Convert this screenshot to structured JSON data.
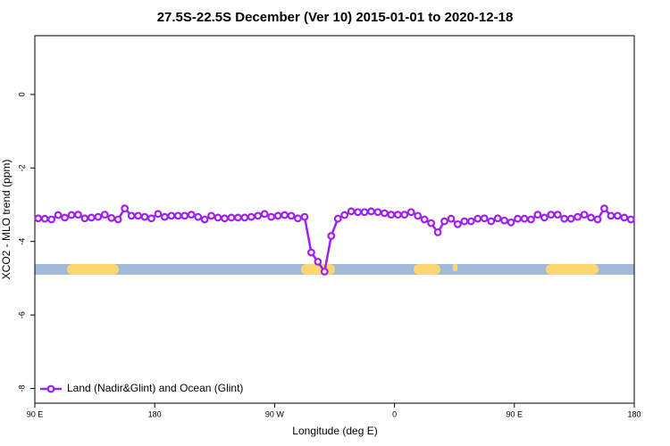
{
  "chart_data": {
    "type": "line",
    "title": "27.5S-22.5S December (Ver 10)   2015-01-01 to 2020-12-18",
    "x_label": "Longitude (deg E)",
    "y_label": "XCO2 - MLO trend (ppm)",
    "xlim": [
      90,
      540
    ],
    "xticks": [
      {
        "value": 90,
        "label": "90 E"
      },
      180,
      {
        "value": 270,
        "label": "90 W"
      },
      {
        "value": 360,
        "label": "0"
      },
      {
        "value": 450,
        "label": "90 E"
      },
      {
        "value": 540,
        "label": "180"
      }
    ],
    "ylim": [
      -8.4,
      1.6
    ],
    "yticks": [
      0,
      -2,
      -4,
      -6,
      -8
    ],
    "legend": "bottom-left",
    "x": [
      92.5,
      97.5,
      102.5,
      107.5,
      112.5,
      117.5,
      122.5,
      127.5,
      132.5,
      137.5,
      142.5,
      147.5,
      152.5,
      157.5,
      162.5,
      167.5,
      172.5,
      177.5,
      182.5,
      187.5,
      192.5,
      197.5,
      202.5,
      207.5,
      212.5,
      217.5,
      222.5,
      227.5,
      232.5,
      237.5,
      242.5,
      247.5,
      252.5,
      257.5,
      262.5,
      267.5,
      272.5,
      277.5,
      282.5,
      287.5,
      292.5,
      297.5,
      302.5,
      307.5,
      312.5,
      317.5,
      322.5,
      327.5,
      332.5,
      337.5,
      342.5,
      347.5,
      352.5,
      357.5,
      362.5,
      367.5,
      372.5,
      377.5,
      382.5,
      387.5,
      392.5,
      397.5,
      402.5,
      407.5,
      412.5,
      417.5,
      422.5,
      427.5,
      432.5,
      437.5,
      442.5,
      447.5,
      452.5,
      457.5,
      462.5,
      467.5,
      472.5,
      477.5,
      482.5,
      487.5,
      492.5,
      497.5,
      502.5,
      507.5,
      512.5,
      517.5,
      522.5,
      527.5,
      532.5,
      537.5
    ],
    "series": [
      {
        "name": "Land (Nadir&Glint) and Ocean (Glint)",
        "color": "#a020f0",
        "values": [
          -3.37,
          -3.38,
          -3.4,
          -3.28,
          -3.35,
          -3.28,
          -3.27,
          -3.37,
          -3.35,
          -3.33,
          -3.27,
          -3.36,
          -3.4,
          -3.1,
          -3.3,
          -3.3,
          -3.33,
          -3.37,
          -3.25,
          -3.33,
          -3.3,
          -3.3,
          -3.3,
          -3.27,
          -3.33,
          -3.4,
          -3.3,
          -3.35,
          -3.37,
          -3.35,
          -3.35,
          -3.35,
          -3.33,
          -3.3,
          -3.25,
          -3.33,
          -3.3,
          -3.28,
          -3.3,
          -3.37,
          -3.33,
          -4.3,
          -4.55,
          -4.82,
          -3.85,
          -3.38,
          -3.28,
          -3.18,
          -3.2,
          -3.2,
          -3.18,
          -3.2,
          -3.23,
          -3.27,
          -3.27,
          -3.27,
          -3.2,
          -3.3,
          -3.4,
          -3.5,
          -3.75,
          -3.45,
          -3.38,
          -3.53,
          -3.45,
          -3.45,
          -3.38,
          -3.37,
          -3.45,
          -3.37,
          -3.43,
          -3.48,
          -3.38,
          -3.38,
          -3.4,
          -3.27,
          -3.35,
          -3.27,
          -3.27,
          -3.38,
          -3.38,
          -3.33,
          -3.27,
          -3.35,
          -3.4,
          -3.1,
          -3.3,
          -3.3,
          -3.35,
          -3.4
        ]
      }
    ]
  }
}
